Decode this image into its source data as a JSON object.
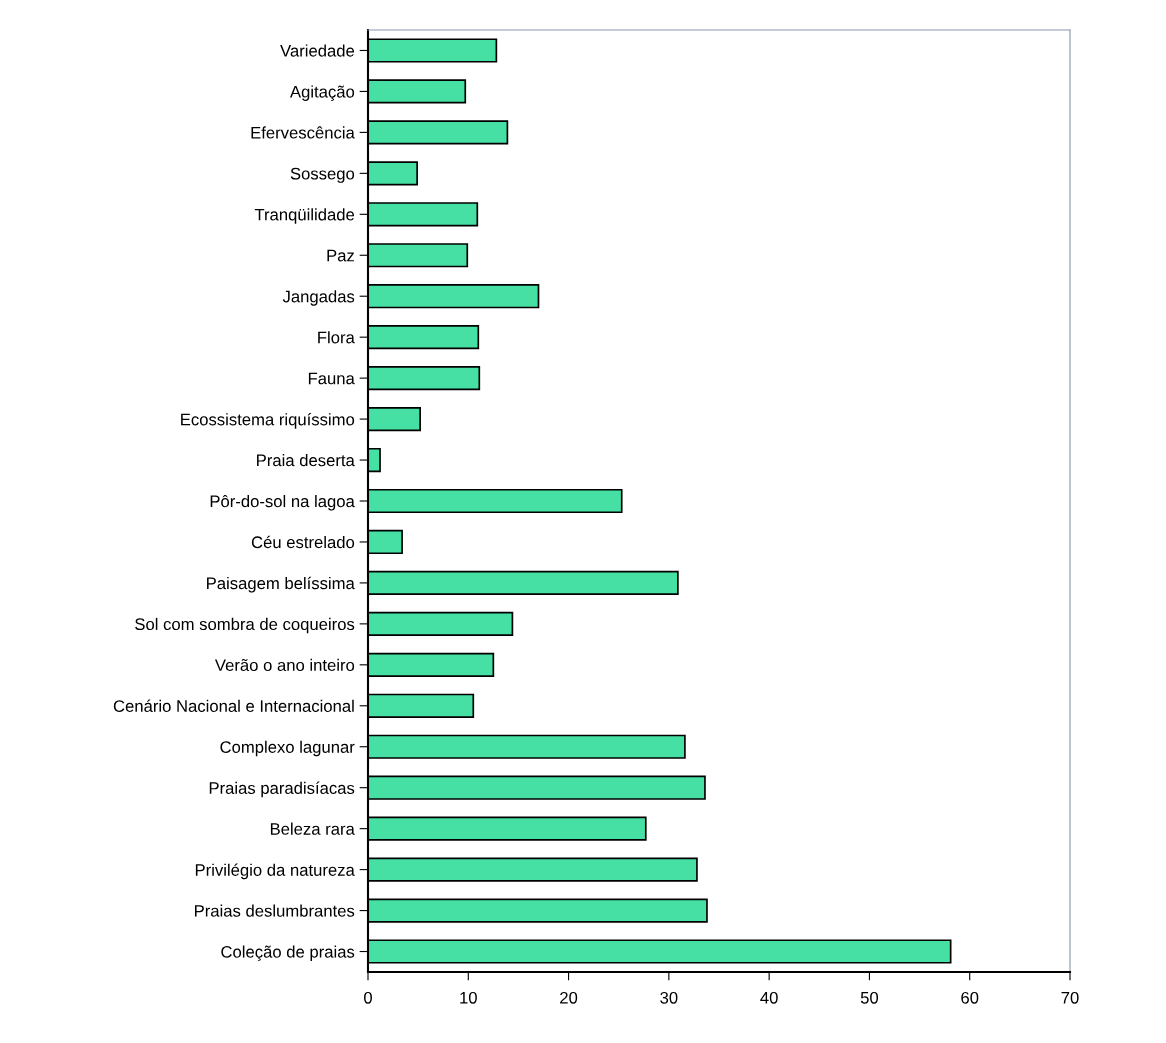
{
  "chart_data": {
    "type": "bar",
    "orientation": "horizontal",
    "categories": [
      "Variedade",
      "Agitação",
      "Efervescência",
      "Sossego",
      "Tranqüilidade",
      "Paz",
      "Jangadas",
      "Flora",
      "Fauna",
      "Ecossistema riquíssimo",
      "Praia deserta",
      "Pôr-do-sol na lagoa",
      "Céu estrelado",
      "Paisagem belíssima",
      "Sol com sombra de coqueiros",
      "Verão o ano inteiro",
      "Cenário Nacional e Internacional",
      "Complexo lagunar",
      "Praias paradisíacas",
      "Beleza rara",
      "Privilégio da natureza",
      "Praias deslumbrantes",
      "Coleção de praias"
    ],
    "values": [
      12.8,
      9.7,
      13.9,
      4.9,
      10.9,
      9.9,
      17.0,
      11.0,
      11.1,
      5.2,
      1.2,
      25.3,
      3.4,
      30.9,
      14.4,
      12.5,
      10.5,
      31.6,
      33.6,
      27.7,
      32.8,
      33.8,
      58.1
    ],
    "color": "#46e0a4",
    "xlim": [
      0,
      70
    ],
    "xticks": [
      0,
      10,
      20,
      30,
      40,
      50,
      60,
      70
    ],
    "grid": false,
    "legend": false
  }
}
